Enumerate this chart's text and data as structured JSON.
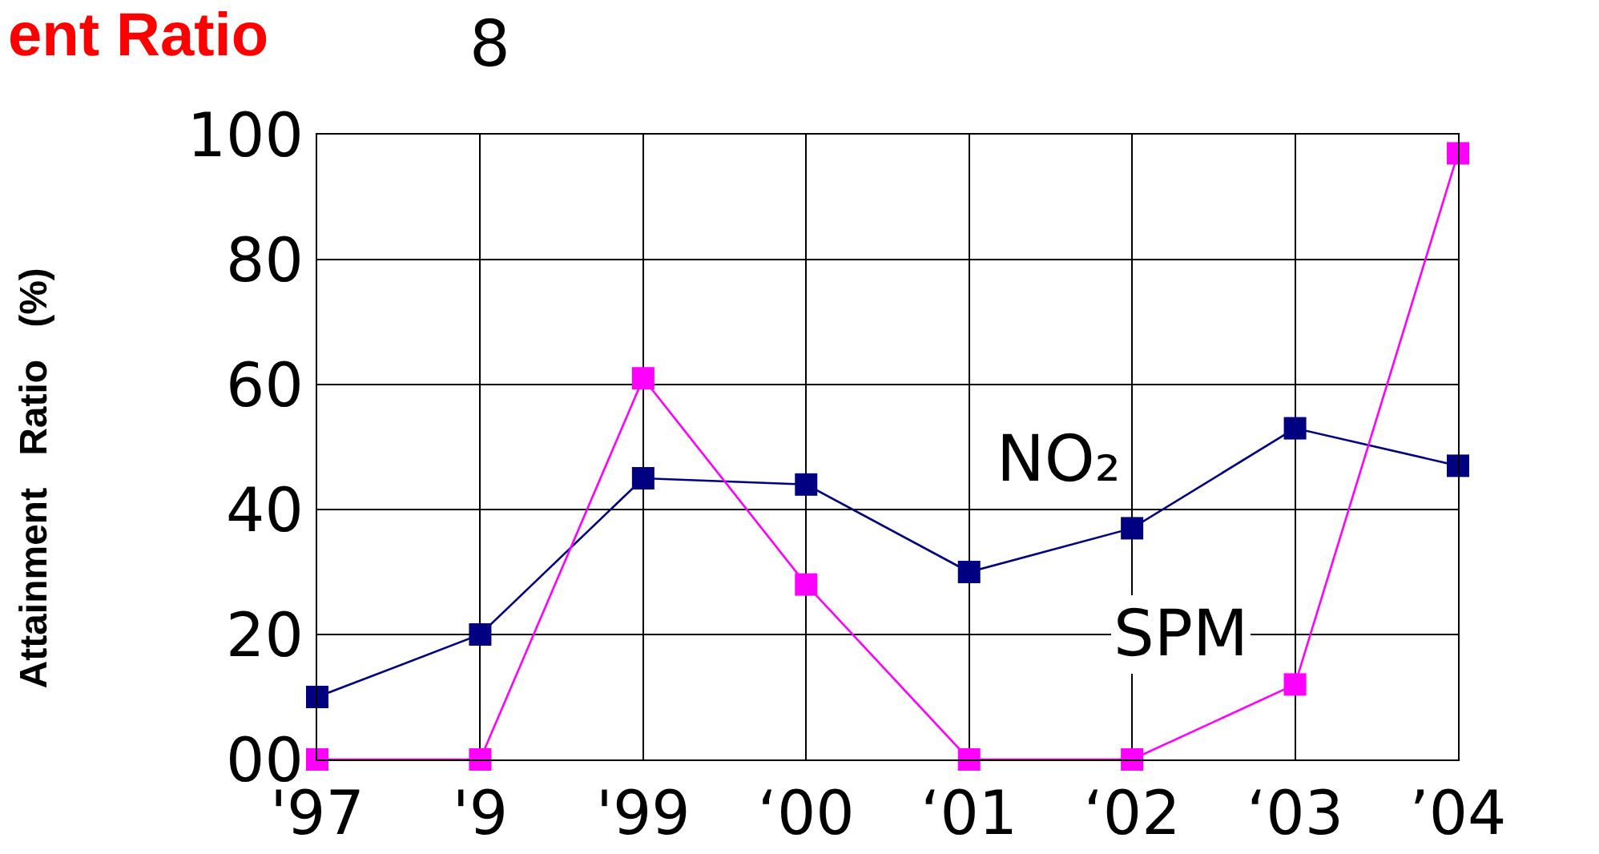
{
  "chart_data": {
    "type": "line",
    "title": "ent Ratio",
    "ylabel": "Attainment   Ratio   (%)",
    "annotations": [
      "8"
    ],
    "categories": [
      "'97",
      "'9",
      "'99",
      "‘00",
      "‘01",
      "‘02",
      "‘03",
      "’04"
    ],
    "series": [
      {
        "name": "NO₂",
        "color": "#000080",
        "values": [
          10,
          20,
          45,
          44,
          30,
          37,
          53,
          47
        ]
      },
      {
        "name": "SPM",
        "color": "#ff00ff",
        "values": [
          0,
          0,
          61,
          28,
          0,
          0,
          12,
          97
        ]
      }
    ],
    "ylim": [
      0,
      100
    ],
    "yticks": [
      {
        "value": 0,
        "label": "00"
      },
      20,
      40,
      60,
      80,
      100
    ],
    "grid": true,
    "legend": false,
    "marker": "square",
    "line_style": "solid"
  }
}
